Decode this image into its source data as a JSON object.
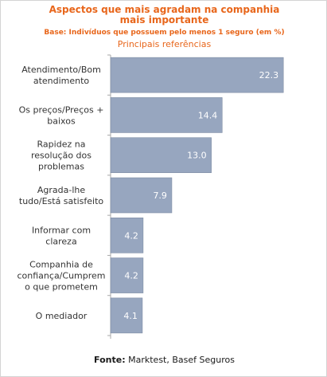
{
  "chart_data": {
    "type": "bar",
    "orientation": "horizontal",
    "title_line1": "Aspectos que mais agradam na companhia",
    "title_line2": "mais importante",
    "subtitle": "Base: Indivíduos que possuem pelo menos 1 seguro (em %)",
    "subsubtitle": "Principais referências",
    "categories": [
      [
        "Atendimento/Bom",
        "atendimento"
      ],
      [
        "Os preços/Preços +",
        "baixos"
      ],
      [
        "Rapidez na",
        "resolução dos",
        "problemas"
      ],
      [
        "Agrada-lhe",
        "tudo/Está satisfeito"
      ],
      [
        "Informar com",
        "clareza"
      ],
      [
        "Companhia de",
        "confiança/Cumprem",
        "o que prometem"
      ],
      [
        "O mediador"
      ]
    ],
    "values": [
      22.3,
      14.4,
      13.0,
      7.9,
      4.2,
      4.2,
      4.1
    ],
    "value_labels": [
      "22.3",
      "14.4",
      "13.0",
      "7.9",
      "4.2",
      "4.2",
      "4.1"
    ],
    "xlim": [
      0,
      23
    ],
    "grid": false,
    "legend": "none",
    "colors": {
      "bar": "#97a6bf",
      "bar_edge": "#7d8ba3",
      "value_text": "#ffffff",
      "category_text": "#333333",
      "axis": "#aaaaaa",
      "title": "#e8661b"
    }
  },
  "source": {
    "label": "Fonte:",
    "text": "Marktest, Basef Seguros"
  }
}
